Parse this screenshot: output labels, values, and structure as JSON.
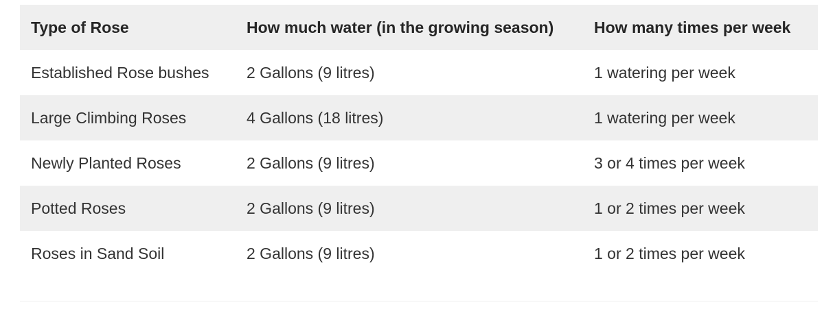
{
  "table": {
    "headers": [
      "Type of Rose",
      "How much water (in the growing season)",
      "How many times per week"
    ],
    "rows": [
      [
        "Established Rose bushes",
        "2 Gallons (9 litres)",
        "1 watering per week"
      ],
      [
        "Large Climbing Roses",
        "4 Gallons (18 litres)",
        "1 watering per week"
      ],
      [
        "Newly Planted Roses",
        "2 Gallons (9 litres)",
        "3 or 4 times per week"
      ],
      [
        "Potted Roses",
        "2 Gallons (9 litres)",
        "1 or 2 times per week"
      ],
      [
        "Roses in Sand Soil",
        "2 Gallons (9 litres)",
        "1 or 2 times per week"
      ]
    ]
  },
  "colors": {
    "header_background": "#efefef",
    "striped_row_background": "#efefef",
    "text": "#333333"
  }
}
